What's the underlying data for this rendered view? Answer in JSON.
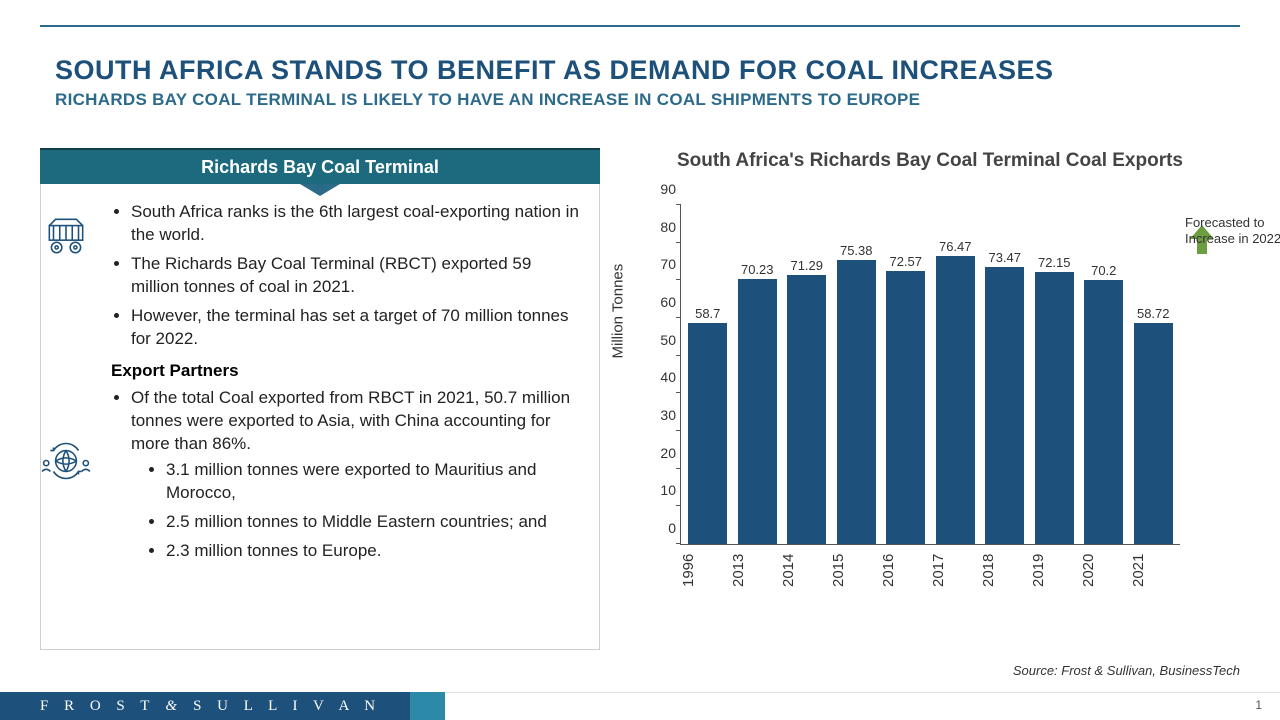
{
  "headline": {
    "title": "SOUTH AFRICA STANDS TO BENEFIT AS DEMAND FOR COAL INCREASES",
    "subtitle": "RICHARDS BAY COAL TERMINAL IS LIKELY TO HAVE AN INCREASE IN COAL SHIPMENTS TO EUROPE"
  },
  "panel": {
    "header": "Richards Bay Coal Terminal",
    "bullets_top": [
      "South Africa ranks is the 6th largest coal-exporting nation in the world.",
      "The Richards Bay Coal Terminal (RBCT) exported 59 million tonnes of coal in 2021.",
      "However, the terminal has set a target of 70 million tonnes for 2022."
    ],
    "subhead": "Export Partners",
    "bullets_bottom": [
      "Of the total Coal exported from RBCT in 2021, 50.7 million tonnes were exported to Asia, with China accounting for more than 86%."
    ],
    "sub_bullets": [
      "3.1 million tonnes were exported to Mauritius and Morocco,",
      "2.5 million tonnes to Middle Eastern countries; and",
      "2.3 million tonnes to Europe."
    ]
  },
  "chart": {
    "title": "South Africa's Richards Bay Coal Terminal Coal Exports",
    "ylabel": "Million Tonnes",
    "ylim": [
      0,
      90
    ],
    "ytick_step": 10,
    "categories": [
      "1996",
      "2013",
      "2014",
      "2015",
      "2016",
      "2017",
      "2018",
      "2019",
      "2020",
      "2021"
    ],
    "values": [
      58.7,
      70.23,
      71.29,
      75.38,
      72.57,
      76.47,
      73.47,
      72.15,
      70.2,
      58.72
    ],
    "bar_color": "#1d507a",
    "axis_color": "#555555",
    "label_fontsize": 15,
    "value_fontsize": 13,
    "title_fontsize": 19,
    "forecast_note": "Forecasted to Increase in 2022.",
    "forecast_arrow_color": "#6b9e3f"
  },
  "source": "Source: Frost & Sullivan, BusinessTech",
  "footer": {
    "brand_left": "F R O S T",
    "brand_amp": "&",
    "brand_right": "S U L L I V A N",
    "page": "1"
  },
  "colors": {
    "primary": "#1d507a",
    "secondary": "#2c6a8a",
    "panel_header": "#1d6a7e"
  }
}
